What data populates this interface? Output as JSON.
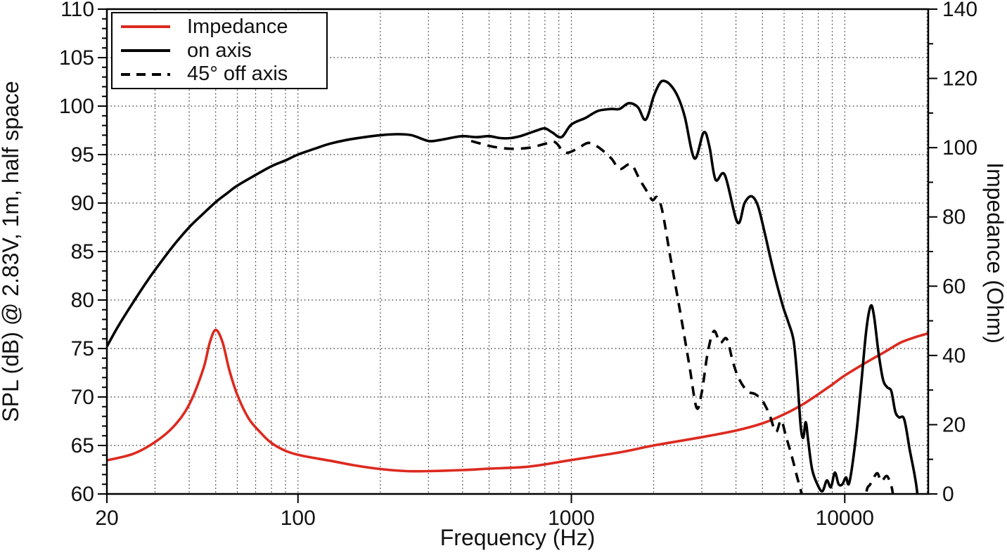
{
  "chart_data": {
    "type": "line",
    "title": "",
    "x_axis": {
      "label": "Frequency (Hz)",
      "scale": "log",
      "min": 20,
      "max": 20000,
      "major_ticks": [
        20,
        100,
        1000,
        10000
      ],
      "tick_labels": [
        "20",
        "100",
        "1000",
        "10000"
      ]
    },
    "y_left_axis": {
      "label": "SPL (dB) @ 2.83V, 1m, half space",
      "min": 60,
      "max": 110,
      "major_step": 5,
      "minor_step": 1,
      "tick_values": [
        60,
        65,
        70,
        75,
        80,
        85,
        90,
        95,
        100,
        105,
        110
      ],
      "tick_labels": [
        "60",
        "65",
        "70",
        "75",
        "80",
        "85",
        "90",
        "95",
        "100",
        "105",
        "110"
      ]
    },
    "y_right_axis": {
      "label": "Impedance (Ohm)",
      "min": 0,
      "max": 140,
      "major_step": 20,
      "minor_step": 10,
      "tick_values": [
        0,
        20,
        40,
        60,
        80,
        100,
        120,
        140
      ],
      "tick_labels": [
        "0",
        "20",
        "40",
        "60",
        "80",
        "100",
        "120",
        "140"
      ]
    },
    "grid": {
      "style": "dotted",
      "h_lines_db": [
        65,
        70,
        75,
        80,
        85,
        90,
        95,
        100,
        105
      ],
      "v_lines_hz": [
        30,
        40,
        50,
        60,
        70,
        80,
        90,
        100,
        200,
        300,
        400,
        500,
        600,
        700,
        800,
        900,
        1000,
        2000,
        3000,
        4000,
        5000,
        6000,
        7000,
        8000,
        9000,
        10000,
        20000
      ]
    },
    "legend": {
      "position": "top-left"
    },
    "series": [
      {
        "name": "Impedance",
        "axis": "right",
        "unit": "Ohm",
        "color": "#dc2a20",
        "style": "solid",
        "points": [
          [
            20,
            9.7
          ],
          [
            25,
            11.6
          ],
          [
            30,
            15.0
          ],
          [
            35,
            19.4
          ],
          [
            40,
            25.8
          ],
          [
            45,
            36.0
          ],
          [
            47.5,
            43.5
          ],
          [
            50,
            47.4
          ],
          [
            53,
            43.8
          ],
          [
            56,
            36.0
          ],
          [
            60,
            28.6
          ],
          [
            66,
            21.8
          ],
          [
            73,
            17.7
          ],
          [
            80,
            14.7
          ],
          [
            91,
            12.3
          ],
          [
            104,
            11.0
          ],
          [
            131,
            9.6
          ],
          [
            160,
            8.3
          ],
          [
            200,
            7.2
          ],
          [
            250,
            6.6
          ],
          [
            300,
            6.6
          ],
          [
            400,
            6.9
          ],
          [
            500,
            7.3
          ],
          [
            700,
            7.9
          ],
          [
            1000,
            9.8
          ],
          [
            1500,
            12.0
          ],
          [
            2000,
            14.0
          ],
          [
            3000,
            16.4
          ],
          [
            4000,
            18.3
          ],
          [
            5000,
            20.4
          ],
          [
            6000,
            23.0
          ],
          [
            7000,
            25.8
          ],
          [
            8000,
            28.8
          ],
          [
            9000,
            31.6
          ],
          [
            10000,
            34.2
          ],
          [
            12000,
            38.0
          ],
          [
            14000,
            41.0
          ],
          [
            16000,
            43.7
          ],
          [
            18000,
            45.2
          ],
          [
            20000,
            46.3
          ],
          [
            20200,
            46.6
          ]
        ]
      },
      {
        "name": "on axis",
        "axis": "left",
        "unit": "dB",
        "color": "#000000",
        "style": "solid",
        "points": [
          [
            20,
            75.2
          ],
          [
            22,
            77.3
          ],
          [
            25,
            79.8
          ],
          [
            28,
            81.9
          ],
          [
            30,
            83.1
          ],
          [
            35,
            85.6
          ],
          [
            40,
            87.5
          ],
          [
            45,
            88.9
          ],
          [
            50,
            90.1
          ],
          [
            55,
            91.0
          ],
          [
            60,
            91.8
          ],
          [
            70,
            92.9
          ],
          [
            80,
            93.8
          ],
          [
            90,
            94.4
          ],
          [
            100,
            95.0
          ],
          [
            115,
            95.6
          ],
          [
            130,
            96.1
          ],
          [
            150,
            96.5
          ],
          [
            175,
            96.8
          ],
          [
            200,
            97.0
          ],
          [
            230,
            97.1
          ],
          [
            260,
            97.0
          ],
          [
            300,
            96.4
          ],
          [
            330,
            96.5
          ],
          [
            360,
            96.7
          ],
          [
            400,
            96.9
          ],
          [
            450,
            96.8
          ],
          [
            500,
            96.9
          ],
          [
            550,
            96.7
          ],
          [
            600,
            96.7
          ],
          [
            650,
            96.9
          ],
          [
            700,
            97.2
          ],
          [
            750,
            97.5
          ],
          [
            800,
            97.7
          ],
          [
            850,
            97.3
          ],
          [
            920,
            96.8
          ],
          [
            1000,
            98.1
          ],
          [
            1130,
            98.8
          ],
          [
            1250,
            99.5
          ],
          [
            1400,
            99.7
          ],
          [
            1500,
            99.7
          ],
          [
            1620,
            100.3
          ],
          [
            1750,
            99.9
          ],
          [
            1870,
            98.6
          ],
          [
            2000,
            101.0
          ],
          [
            2100,
            102.3
          ],
          [
            2175,
            102.6
          ],
          [
            2300,
            102.2
          ],
          [
            2450,
            101.0
          ],
          [
            2600,
            98.9
          ],
          [
            2820,
            94.6
          ],
          [
            3050,
            97.3
          ],
          [
            3200,
            95.8
          ],
          [
            3370,
            92.4
          ],
          [
            3640,
            92.9
          ],
          [
            4050,
            88.0
          ],
          [
            4300,
            90.0
          ],
          [
            4550,
            90.7
          ],
          [
            4800,
            89.8
          ],
          [
            5080,
            87.1
          ],
          [
            5300,
            84.8
          ],
          [
            5600,
            82.0
          ],
          [
            5950,
            79.3
          ],
          [
            6200,
            77.8
          ],
          [
            6500,
            75.8
          ],
          [
            6700,
            72.0
          ],
          [
            6900,
            67.0
          ],
          [
            7050,
            65.8
          ],
          [
            7200,
            67.4
          ],
          [
            7350,
            65.5
          ],
          [
            7600,
            62.5
          ],
          [
            8000,
            60.8
          ],
          [
            8300,
            60.3
          ],
          [
            8600,
            61.4
          ],
          [
            8900,
            60.7
          ],
          [
            9200,
            62.2
          ],
          [
            9500,
            61.0
          ],
          [
            9800,
            61.0
          ],
          [
            10100,
            61.7
          ],
          [
            10400,
            61.2
          ],
          [
            11000,
            66.0
          ],
          [
            11500,
            71.5
          ],
          [
            12000,
            77.0
          ],
          [
            12450,
            79.4
          ],
          [
            12800,
            78.3
          ],
          [
            13300,
            74.5
          ],
          [
            13800,
            71.8
          ],
          [
            14300,
            71.0
          ],
          [
            14800,
            70.6
          ],
          [
            15300,
            68.5
          ],
          [
            15800,
            67.9
          ],
          [
            16500,
            67.7
          ],
          [
            17300,
            64.5
          ],
          [
            18000,
            62.0
          ],
          [
            18400,
            60.2
          ],
          [
            18600,
            58.0
          ]
        ]
      },
      {
        "name": "45° off axis",
        "axis": "left",
        "unit": "dB",
        "color": "#000000",
        "style": "dashed",
        "points": [
          [
            430,
            96.4
          ],
          [
            470,
            96.1
          ],
          [
            520,
            95.8
          ],
          [
            600,
            95.6
          ],
          [
            700,
            95.7
          ],
          [
            800,
            96.1
          ],
          [
            870,
            96.3
          ],
          [
            950,
            95.2
          ],
          [
            1050,
            95.6
          ],
          [
            1150,
            96.2
          ],
          [
            1250,
            95.8
          ],
          [
            1400,
            94.6
          ],
          [
            1500,
            93.5
          ],
          [
            1650,
            94.0
          ],
          [
            1780,
            92.4
          ],
          [
            1900,
            91.1
          ],
          [
            1980,
            90.3
          ],
          [
            2060,
            90.6
          ],
          [
            2150,
            89.2
          ],
          [
            2300,
            84.5
          ],
          [
            2500,
            78.8
          ],
          [
            2700,
            73.3
          ],
          [
            2870,
            68.9
          ],
          [
            3000,
            70.5
          ],
          [
            3150,
            74.5
          ],
          [
            3320,
            76.8
          ],
          [
            3500,
            75.6
          ],
          [
            3700,
            76.0
          ],
          [
            3900,
            73.6
          ],
          [
            4100,
            71.9
          ],
          [
            4400,
            70.6
          ],
          [
            4700,
            70.3
          ],
          [
            5000,
            69.6
          ],
          [
            5300,
            68.2
          ],
          [
            5600,
            66.4
          ],
          [
            5850,
            67.6
          ],
          [
            6100,
            65.9
          ],
          [
            6400,
            63.9
          ],
          [
            6700,
            61.7
          ],
          [
            6950,
            60.0
          ],
          [
            7300,
            56.5
          ],
          [
            11600,
            56.5
          ],
          [
            12000,
            60.2
          ],
          [
            12400,
            61.0
          ],
          [
            12900,
            61.9
          ],
          [
            13200,
            62.1
          ],
          [
            13600,
            61.3
          ],
          [
            14100,
            61.8
          ],
          [
            14400,
            61.7
          ],
          [
            14900,
            60.5
          ],
          [
            15200,
            58.5
          ]
        ]
      }
    ]
  }
}
